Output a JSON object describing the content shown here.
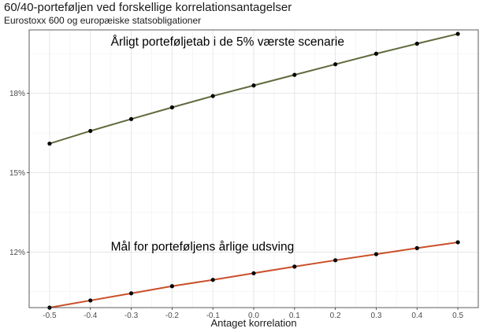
{
  "chart_data": {
    "type": "line",
    "title": "60/40-porteføljen ved forskellige korrelationsantagelser",
    "subtitle": "Eurostoxx 600 og europæiske statsobligationer",
    "xlabel": "Antaget korrelation",
    "ylabel": "",
    "x": [
      -0.5,
      -0.4,
      -0.3,
      -0.2,
      -0.1,
      0.0,
      0.1,
      0.2,
      0.3,
      0.4,
      0.5
    ],
    "x_tick_labels": [
      "-0.5",
      "-0.4",
      "-0.3",
      "-0.2",
      "-0.1",
      "0.0",
      "0.1",
      "0.2",
      "0.3",
      "0.4",
      "0.5"
    ],
    "y_ticks": [
      12,
      15,
      18
    ],
    "y_tick_labels": [
      "12%",
      "15%",
      "18%"
    ],
    "xlim": [
      -0.55,
      0.55
    ],
    "ylim": [
      9.9,
      20.4
    ],
    "grid": true,
    "series": [
      {
        "key": "loss",
        "values": [
          16.1,
          16.58,
          17.03,
          17.47,
          17.9,
          18.3,
          18.7,
          19.1,
          19.5,
          19.88,
          20.25
        ],
        "color": "#5f6b3d"
      },
      {
        "key": "vol",
        "values": [
          9.9,
          10.17,
          10.44,
          10.71,
          10.95,
          11.2,
          11.45,
          11.69,
          11.92,
          12.15,
          12.37
        ],
        "color": "#c9502a"
      }
    ],
    "annotations": [
      {
        "text": "Årligt porteføljetab i de 5% værste scenarie",
        "x": -0.35,
        "y": 19.8
      },
      {
        "text": "Mål for porteføljens årlige udsving",
        "x": -0.35,
        "y": 12.05
      }
    ]
  }
}
